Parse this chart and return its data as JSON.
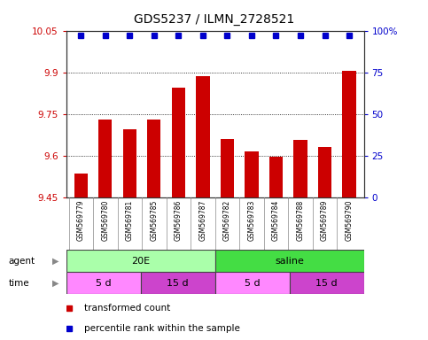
{
  "title": "GDS5237 / ILMN_2728521",
  "samples": [
    "GSM569779",
    "GSM569780",
    "GSM569781",
    "GSM569785",
    "GSM569786",
    "GSM569787",
    "GSM569782",
    "GSM569783",
    "GSM569784",
    "GSM569788",
    "GSM569789",
    "GSM569790"
  ],
  "bar_values": [
    9.535,
    9.73,
    9.695,
    9.73,
    9.845,
    9.885,
    9.66,
    9.615,
    9.595,
    9.655,
    9.63,
    9.905
  ],
  "percentile_values": [
    97,
    97,
    97,
    97,
    97,
    97,
    97,
    97,
    97,
    97,
    97,
    97
  ],
  "ymin": 9.45,
  "ymax": 10.05,
  "yticks": [
    9.45,
    9.6,
    9.75,
    9.9,
    10.05
  ],
  "ytick_labels": [
    "9.45",
    "9.6",
    "9.75",
    "9.9",
    "10.05"
  ],
  "right_yticks": [
    0,
    25,
    50,
    75,
    100
  ],
  "right_ytick_labels": [
    "0",
    "25",
    "50",
    "75",
    "100%"
  ],
  "bar_color": "#cc0000",
  "percentile_color": "#0000cc",
  "bar_bottom": 9.45,
  "agent_groups": [
    {
      "label": "20E",
      "start": 0,
      "end": 6,
      "color": "#aaffaa"
    },
    {
      "label": "saline",
      "start": 6,
      "end": 12,
      "color": "#44dd44"
    }
  ],
  "time_groups": [
    {
      "label": "5 d",
      "start": 0,
      "end": 3,
      "color": "#ff88ff"
    },
    {
      "label": "15 d",
      "start": 3,
      "end": 6,
      "color": "#cc44cc"
    },
    {
      "label": "5 d",
      "start": 6,
      "end": 9,
      "color": "#ff88ff"
    },
    {
      "label": "15 d",
      "start": 9,
      "end": 12,
      "color": "#cc44cc"
    }
  ],
  "left_axis_color": "#cc0000",
  "right_axis_color": "#0000cc",
  "background_color": "#ffffff",
  "plot_bg_color": "#ffffff",
  "grid_color": "#000000"
}
